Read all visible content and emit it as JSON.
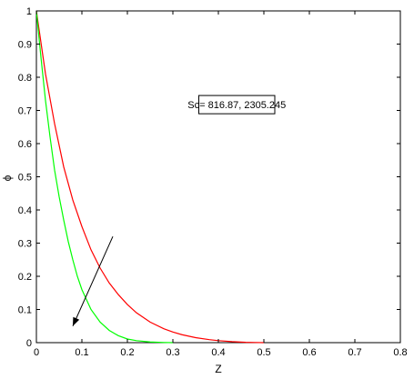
{
  "chart_data": {
    "type": "line",
    "title": "",
    "xlabel": "Z",
    "ylabel": "ϕ",
    "xlim": [
      0,
      0.8
    ],
    "ylim": [
      0,
      1
    ],
    "xticks": [
      "0",
      "0.1",
      "0.2",
      "0.3",
      "0.4",
      "0.5",
      "0.6",
      "0.7",
      "0.8"
    ],
    "yticks": [
      "0",
      "0.1",
      "0.2",
      "0.3",
      "0.4",
      "0.5",
      "0.6",
      "0.7",
      "0.8",
      "0.9",
      "1"
    ],
    "grid": false,
    "series": [
      {
        "color": "#ff0000",
        "x": [
          0,
          0.02,
          0.04,
          0.06,
          0.08,
          0.1,
          0.12,
          0.14,
          0.16,
          0.18,
          0.2,
          0.22,
          0.25,
          0.28,
          0.3,
          0.32,
          0.35,
          0.38,
          0.4,
          0.43,
          0.46,
          0.48,
          0.5
        ],
        "y": [
          1.0,
          0.81,
          0.66,
          0.53,
          0.43,
          0.35,
          0.28,
          0.225,
          0.18,
          0.145,
          0.115,
          0.09,
          0.062,
          0.042,
          0.032,
          0.024,
          0.015,
          0.009,
          0.006,
          0.003,
          0.001,
          0.0005,
          0.0
        ]
      },
      {
        "color": "#00ff00",
        "x": [
          0,
          0.01,
          0.02,
          0.03,
          0.04,
          0.05,
          0.06,
          0.07,
          0.08,
          0.09,
          0.1,
          0.12,
          0.14,
          0.16,
          0.18,
          0.2,
          0.22,
          0.25,
          0.28,
          0.3
        ],
        "y": [
          1.0,
          0.86,
          0.73,
          0.62,
          0.52,
          0.44,
          0.37,
          0.305,
          0.25,
          0.2,
          0.16,
          0.1,
          0.062,
          0.037,
          0.021,
          0.011,
          0.006,
          0.002,
          0.0005,
          0.0
        ]
      }
    ],
    "annotation": {
      "text": "Sc= 816.87, 2305.245",
      "box_x": [
        0.357,
        0.524
      ],
      "box_y": [
        0.69,
        0.745
      ]
    },
    "arrow": {
      "from": [
        0.168,
        0.32
      ],
      "to": [
        0.08,
        0.05
      ]
    }
  }
}
